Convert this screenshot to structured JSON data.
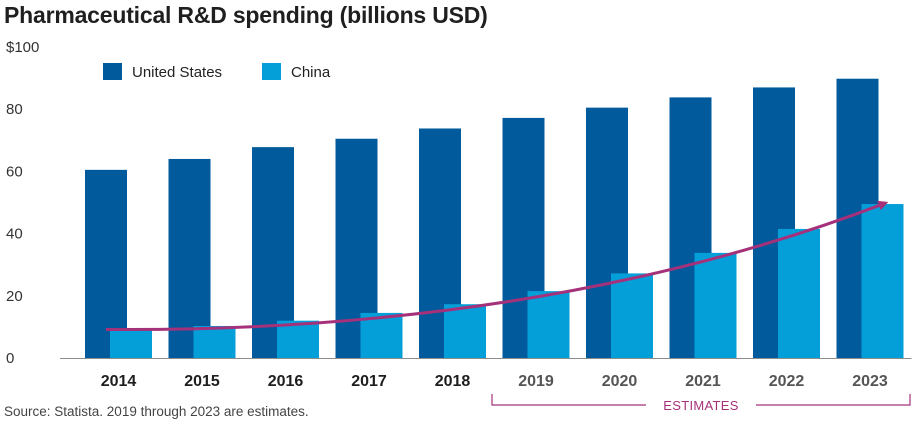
{
  "title": "Pharmaceutical R&D spending (billions USD)",
  "source": "Source: Statista. 2019 through 2023 are estimates.",
  "estimates_label": "ESTIMATES",
  "colors": {
    "us": "#005a9c",
    "china": "#049fd9",
    "arrow": "#a5317a",
    "tick_actual": "#1e1e1e",
    "tick_estimate": "#555555",
    "baseline": "#8c8c8c"
  },
  "chart_data": {
    "type": "bar",
    "title": "Pharmaceutical R&D spending (billions USD)",
    "categories": [
      "2014",
      "2015",
      "2016",
      "2017",
      "2018",
      "2019",
      "2020",
      "2021",
      "2022",
      "2023"
    ],
    "estimate_categories": [
      "2019",
      "2020",
      "2021",
      "2022",
      "2023"
    ],
    "series": [
      {
        "name": "United States",
        "values": [
          60.5,
          64.0,
          67.8,
          70.5,
          73.8,
          77.2,
          80.5,
          83.8,
          87.0,
          89.8
        ]
      },
      {
        "name": "China",
        "values": [
          9.5,
          10.3,
          12.0,
          14.5,
          17.3,
          21.5,
          27.2,
          33.8,
          41.5,
          49.5
        ]
      }
    ],
    "yticks": [
      "$100",
      "80",
      "60",
      "40",
      "20",
      "0"
    ],
    "ytick_values": [
      100,
      80,
      60,
      40,
      20,
      0
    ],
    "ylim": [
      0,
      100
    ],
    "xlabel": "",
    "ylabel": "",
    "legend_position": "top-left",
    "grid": false,
    "trend_arrow": {
      "series": "China",
      "from": "2014",
      "to": "2023"
    }
  }
}
